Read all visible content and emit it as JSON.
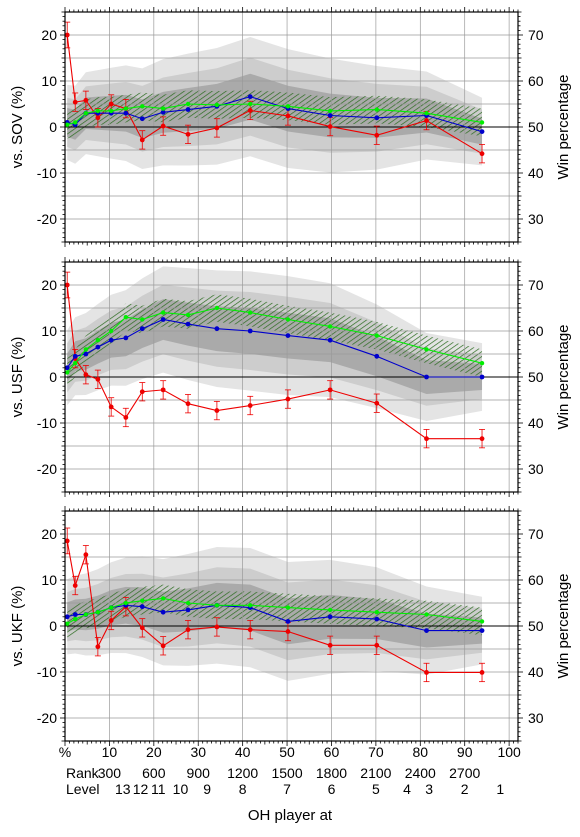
{
  "xlabel": "OH player at",
  "ylabel_right": "Win percentage",
  "x_axis": {
    "percent_row": {
      "label": "%",
      "ticks": [
        10,
        20,
        30,
        40,
        50,
        60,
        70,
        80,
        90,
        100
      ]
    },
    "rank_row": {
      "label": "Rank",
      "ticks": [
        {
          "x": 10,
          "text": "300"
        },
        {
          "x": 20,
          "text": "600"
        },
        {
          "x": 30,
          "text": "900"
        },
        {
          "x": 40,
          "text": "1200"
        },
        {
          "x": 50,
          "text": "1500"
        },
        {
          "x": 60,
          "text": "1800"
        },
        {
          "x": 70,
          "text": "2100"
        },
        {
          "x": 80,
          "text": "2400"
        },
        {
          "x": 90,
          "text": "2700"
        }
      ]
    },
    "level_row": {
      "label": "Level",
      "ticks": [
        {
          "x": 13,
          "text": "13"
        },
        {
          "x": 17,
          "text": "12"
        },
        {
          "x": 21,
          "text": "11"
        },
        {
          "x": 26,
          "text": "10"
        },
        {
          "x": 32,
          "text": "9"
        },
        {
          "x": 40,
          "text": "8"
        },
        {
          "x": 50,
          "text": "7"
        },
        {
          "x": 60,
          "text": "6"
        },
        {
          "x": 70,
          "text": "5"
        },
        {
          "x": 77,
          "text": "4"
        },
        {
          "x": 82,
          "text": "3"
        },
        {
          "x": 90,
          "text": "2"
        },
        {
          "x": 98,
          "text": "1"
        }
      ]
    },
    "xlim": [
      0,
      102
    ]
  },
  "chart_data": [
    {
      "type": "line",
      "ylabel": "vs. SOV (%)",
      "ylim": [
        -25,
        25
      ],
      "y_ticks": [
        -20,
        -10,
        0,
        10,
        20
      ],
      "y2_ticks": [
        30,
        40,
        50,
        60,
        70
      ],
      "grid": true,
      "series": [
        {
          "color": "#ee0000",
          "x": [
            0.5,
            2.3,
            4.7,
            7.4,
            10.4,
            13.7,
            17.4,
            22.1,
            27.7,
            34.2,
            41.7,
            50.2,
            59.7,
            70.2,
            81.4,
            93.9
          ],
          "y": [
            20,
            5.4,
            5.8,
            2.0,
            5.0,
            4.0,
            -2.8,
            0.2,
            -1.6,
            -0.2,
            3.6,
            2.4,
            0.1,
            -1.8,
            1.4,
            -5.8
          ]
        },
        {
          "color": "#0000cc",
          "x": [
            0.5,
            2.3,
            4.7,
            7.4,
            10.4,
            13.7,
            17.4,
            22.1,
            27.7,
            34.2,
            41.7,
            50.2,
            59.7,
            70.2,
            81.4,
            93.9
          ],
          "y": [
            1.0,
            0.5,
            3.0,
            3.0,
            3.0,
            3.0,
            1.8,
            3.2,
            3.8,
            4.5,
            6.6,
            4.0,
            2.5,
            2.0,
            2.5,
            -1.0
          ]
        },
        {
          "color": "#00ee00",
          "x": [
            0.5,
            2.3,
            4.7,
            7.4,
            10.4,
            13.7,
            17.4,
            22.1,
            27.7,
            34.2,
            41.7,
            50.2,
            59.7,
            70.2,
            81.4,
            93.9
          ],
          "y": [
            0.5,
            1.0,
            3.0,
            3.5,
            3.5,
            4.0,
            4.5,
            4.0,
            5.0,
            4.8,
            5.0,
            4.5,
            3.5,
            3.8,
            3.0,
            1.0
          ]
        }
      ]
    },
    {
      "type": "line",
      "ylabel": "vs. USF (%)",
      "ylim": [
        -25,
        25
      ],
      "y_ticks": [
        -20,
        -10,
        0,
        10,
        20
      ],
      "y2_ticks": [
        30,
        40,
        50,
        60,
        70
      ],
      "grid": true,
      "series": [
        {
          "color": "#ee0000",
          "x": [
            0.5,
            2.3,
            4.7,
            7.4,
            10.4,
            13.7,
            17.4,
            22.1,
            27.7,
            34.2,
            41.7,
            50.2,
            59.7,
            70.2,
            81.4,
            93.9
          ],
          "y": [
            20,
            4.0,
            0.5,
            -0.5,
            -6.5,
            -8.8,
            -3.2,
            -2.8,
            -5.8,
            -7.3,
            -6.2,
            -4.8,
            -2.8,
            -5.7,
            -13.4,
            -13.4
          ]
        },
        {
          "color": "#0000cc",
          "x": [
            0.5,
            2.3,
            4.7,
            7.4,
            10.4,
            13.7,
            17.4,
            22.1,
            27.7,
            34.2,
            41.7,
            50.2,
            59.7,
            70.2,
            81.4,
            93.9
          ],
          "y": [
            2.0,
            4.5,
            5.0,
            6.5,
            8.0,
            8.5,
            10.5,
            12.5,
            11.5,
            10.5,
            10.0,
            9.0,
            8.0,
            4.5,
            0.0,
            0.0
          ]
        },
        {
          "color": "#00ee00",
          "x": [
            0.5,
            2.3,
            4.7,
            7.4,
            10.4,
            13.7,
            17.4,
            22.1,
            27.7,
            34.2,
            41.7,
            50.2,
            59.7,
            70.2,
            81.4,
            93.9
          ],
          "y": [
            1.0,
            3.0,
            6.0,
            8.0,
            10.0,
            13.0,
            12.5,
            14.0,
            13.5,
            15.0,
            14.0,
            12.5,
            11.0,
            9.0,
            6.0,
            3.0
          ]
        }
      ]
    },
    {
      "type": "line",
      "ylabel": "vs. UKF (%)",
      "ylim": [
        -25,
        25
      ],
      "y_ticks": [
        -20,
        -10,
        0,
        10,
        20
      ],
      "y2_ticks": [
        30,
        40,
        50,
        60,
        70
      ],
      "grid": true,
      "series": [
        {
          "color": "#ee0000",
          "x": [
            0.5,
            2.3,
            4.7,
            7.4,
            10.4,
            13.7,
            17.4,
            22.1,
            27.7,
            34.2,
            41.7,
            50.2,
            59.7,
            70.2,
            81.4,
            93.9
          ],
          "y": [
            18.5,
            8.8,
            15.5,
            -4.5,
            1.2,
            4.2,
            -0.4,
            -4.3,
            -0.8,
            -0.2,
            -0.8,
            -1.2,
            -4.2,
            -4.2,
            -10.1,
            -10.1
          ]
        },
        {
          "color": "#0000cc",
          "x": [
            0.5,
            2.3,
            4.7,
            7.4,
            10.4,
            13.7,
            17.4,
            22.1,
            27.7,
            34.2,
            41.7,
            50.2,
            59.7,
            70.2,
            81.4,
            93.9
          ],
          "y": [
            2.0,
            2.5,
            2.5,
            3.0,
            4.0,
            4.5,
            4.2,
            3.0,
            3.5,
            4.5,
            4.0,
            1.0,
            2.0,
            1.5,
            -1.0,
            -1.0
          ]
        },
        {
          "color": "#00ee00",
          "x": [
            0.5,
            2.3,
            4.7,
            7.4,
            10.4,
            13.7,
            17.4,
            22.1,
            27.7,
            34.2,
            41.7,
            50.2,
            59.7,
            70.2,
            81.4,
            93.9
          ],
          "y": [
            0.5,
            1.5,
            2.5,
            3.0,
            4.0,
            5.0,
            5.5,
            6.0,
            5.0,
            4.5,
            4.5,
            4.0,
            3.5,
            3.0,
            2.5,
            1.0
          ]
        }
      ]
    }
  ]
}
